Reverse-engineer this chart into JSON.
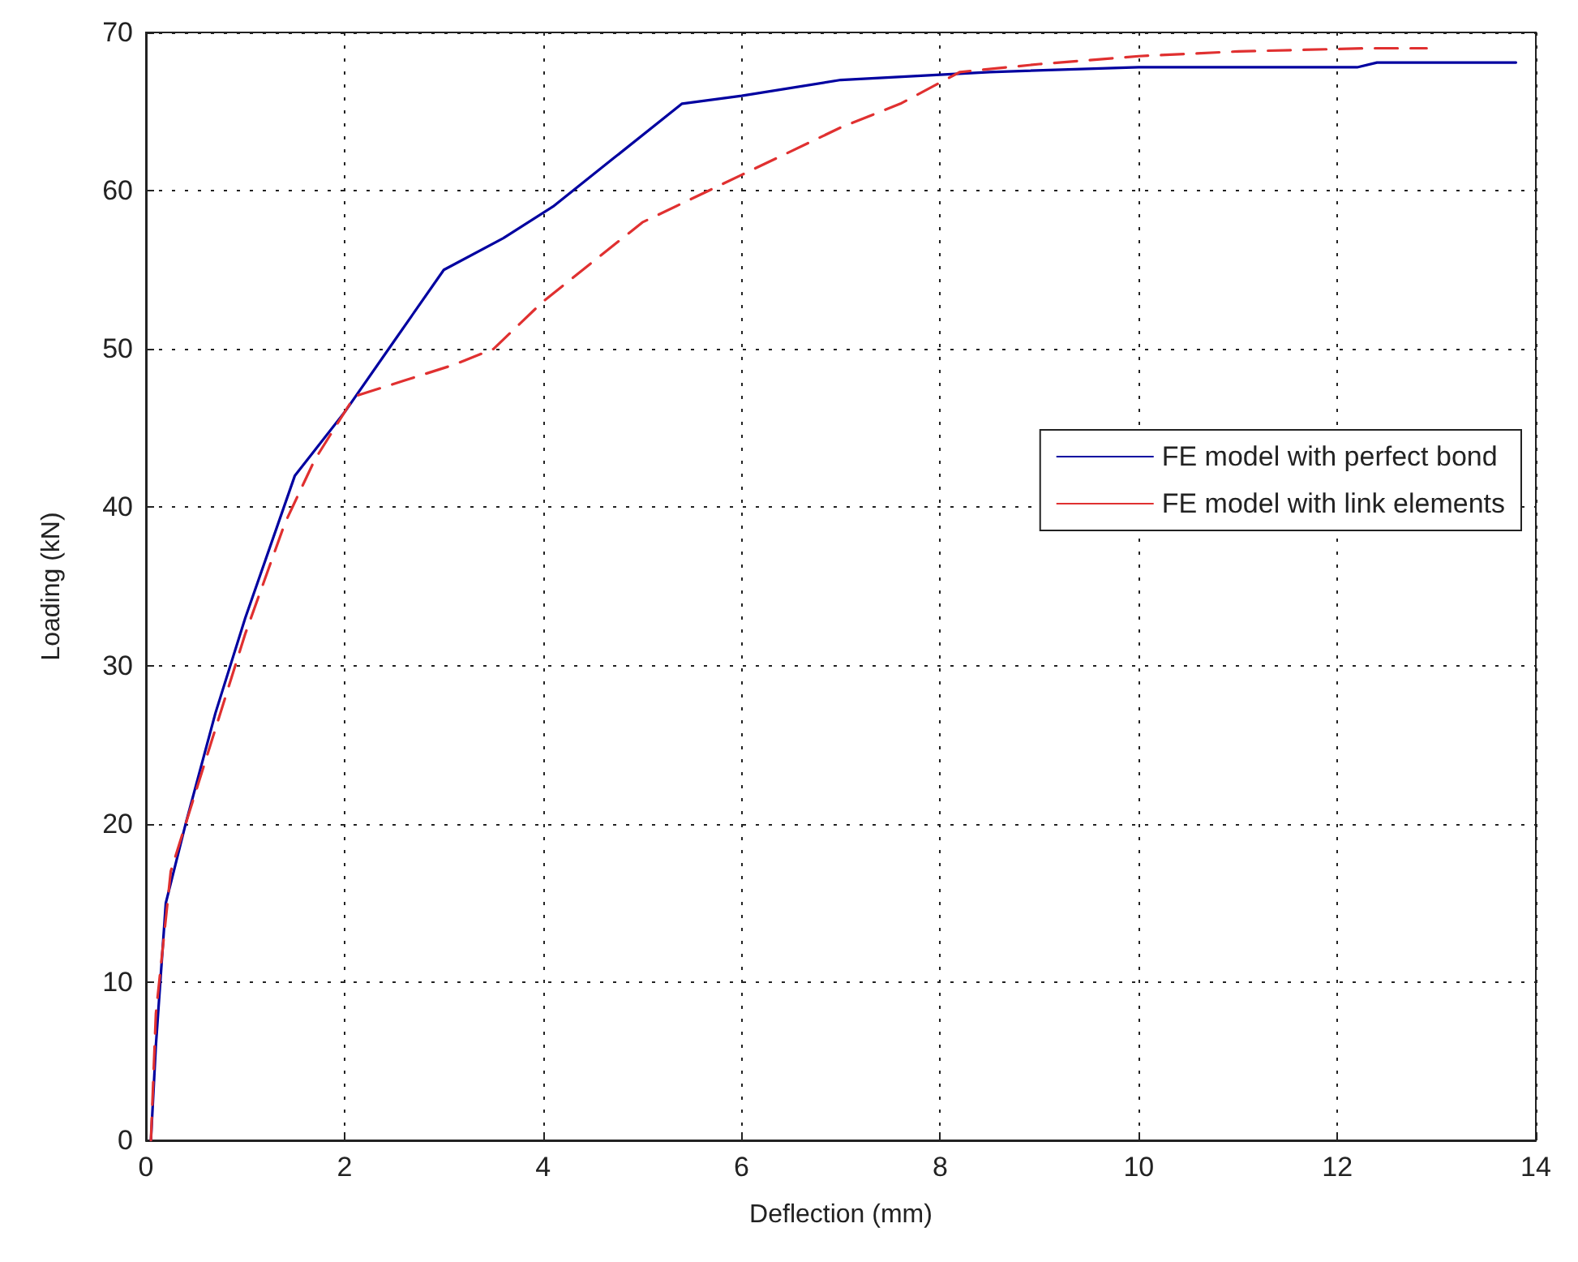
{
  "chart_data": {
    "type": "line",
    "xlabel": "Deflection (mm)",
    "ylabel": "Loading (kN)",
    "xlim": [
      0,
      14
    ],
    "xticks": [
      0,
      2,
      4,
      6,
      8,
      10,
      12,
      14
    ],
    "ylim": [
      0,
      70
    ],
    "yticks": [
      0,
      10,
      20,
      30,
      40,
      50,
      60,
      70
    ],
    "grid": true,
    "legend": "right",
    "marker": "none",
    "series": [
      {
        "name": "FE model with perfect bond",
        "color": "#0000a0",
        "line_style": "solid",
        "x": [
          0.05,
          0.1,
          0.2,
          0.4,
          0.7,
          1,
          1.5,
          2,
          2.5,
          3,
          3.6,
          4.1,
          4.7,
          5.4,
          6,
          7,
          8.5,
          10,
          12.2,
          12.4,
          13.8
        ],
        "values": [
          0,
          6,
          15,
          20,
          27,
          33,
          42,
          46,
          50.5,
          55,
          57,
          59,
          62,
          65.5,
          66,
          67,
          67.5,
          67.8,
          67.8,
          68.1,
          68.1
        ]
      },
      {
        "name": "FE model with link elements",
        "color": "#e03030",
        "line_style": "dashed",
        "x": [
          0.05,
          0.1,
          0.25,
          0.5,
          1,
          1.4,
          1.7,
          2.1,
          2.6,
          3.1,
          3.5,
          4,
          4.5,
          5,
          6,
          7,
          7.6,
          8.2,
          9,
          10,
          11,
          12.3,
          12.9
        ],
        "values": [
          0,
          8,
          17,
          22,
          32,
          39,
          43,
          47,
          48,
          49,
          50,
          53,
          55.5,
          58,
          61,
          64,
          65.5,
          67.5,
          68,
          68.5,
          68.8,
          69,
          69
        ]
      }
    ]
  }
}
